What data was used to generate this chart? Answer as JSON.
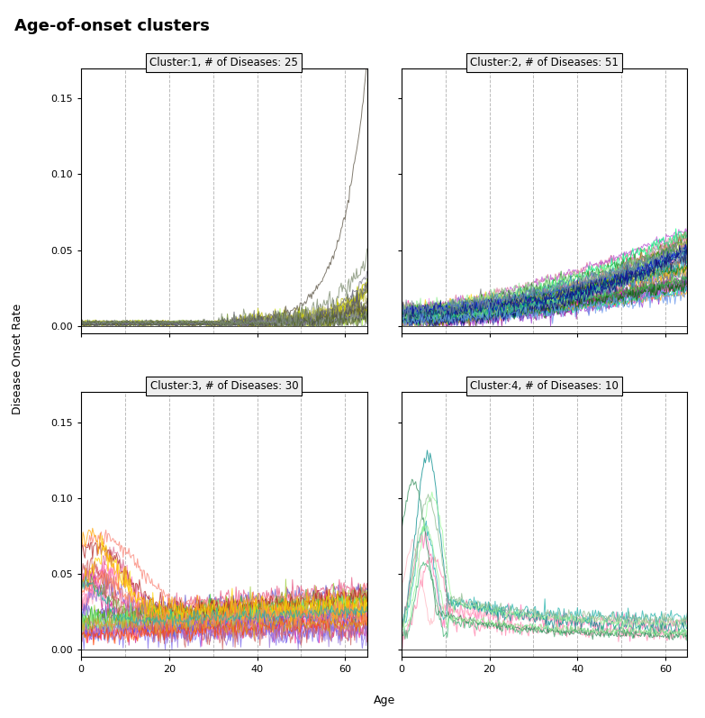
{
  "title": "Age-of-onset clusters",
  "title_fontsize": 13,
  "title_fontweight": "bold",
  "subplot_titles": [
    "Cluster:1, # of Diseases: 25",
    "Cluster:2, # of Diseases: 51",
    "Cluster:3, # of Diseases: 30",
    "Cluster:4, # of Diseases: 10"
  ],
  "xlabel": "Age",
  "ylabel": "Disease Onset Rate",
  "xlim": [
    0,
    65
  ],
  "ylim": [
    -0.005,
    0.17
  ],
  "x_ticks": [
    0,
    20,
    40,
    60
  ],
  "y_ticks": [
    0.0,
    0.05,
    0.1,
    0.15
  ],
  "vlines": [
    10,
    20,
    30,
    40,
    50,
    60
  ],
  "n_lines": [
    25,
    51,
    30,
    10
  ],
  "cluster1_colors": [
    "#808080",
    "#9acd32",
    "#adff2f",
    "#6b8e23",
    "#b8b800",
    "#808000",
    "#a0a000",
    "#909000",
    "#6b6b6b",
    "#7a7a7a",
    "#bdb76b",
    "#c8c800",
    "#d0d000",
    "#686820",
    "#606030",
    "#585040",
    "#505050",
    "#404040",
    "#505060",
    "#606070",
    "#707080",
    "#8080a0",
    "#90a090",
    "#556b2f",
    "#78886a"
  ],
  "cluster2_colors": [
    "#ff69b4",
    "#ff1493",
    "#db7093",
    "#c71585",
    "#e75480",
    "#ff6eb4",
    "#ff82ab",
    "#ee82ee",
    "#da70d6",
    "#ba55d3",
    "#9932cc",
    "#8b008b",
    "#800080",
    "#9370db",
    "#8a2be2",
    "#7b68ee",
    "#6a5acd",
    "#483d8b",
    "#ffa500",
    "#ff8c00",
    "#ffd700",
    "#daa520",
    "#b8860b",
    "#808080",
    "#696969",
    "#556b2f",
    "#6b8e23",
    "#808000",
    "#9acd32",
    "#32cd32",
    "#00fa9a",
    "#00ff7f",
    "#3cb371",
    "#2e8b57",
    "#006400",
    "#008000",
    "#228b22",
    "#90ee90",
    "#98fb98",
    "#8fbc8f",
    "#20b2aa",
    "#008b8b",
    "#008080",
    "#5f9ea0",
    "#4682b4",
    "#4169e1",
    "#0000cd",
    "#00008b",
    "#191970",
    "#6495ed",
    "#778899"
  ],
  "cluster3_colors": [
    "#ff69b4",
    "#ff6eb4",
    "#ffb6c1",
    "#ffc0cb",
    "#ff82ab",
    "#ff1493",
    "#db7093",
    "#c71585",
    "#e75480",
    "#ff8c94",
    "#9370db",
    "#8a2be2",
    "#7b68ee",
    "#6a5acd",
    "#4169e1",
    "#6b8e23",
    "#808000",
    "#9acd32",
    "#32cd32",
    "#90ee90",
    "#fa8072",
    "#f08080",
    "#cd5c5c",
    "#b22222",
    "#ff4500",
    "#ffa500",
    "#ffd700",
    "#daa520",
    "#ff7f50",
    "#20b2aa"
  ],
  "cluster4_colors": [
    "#ff6eb4",
    "#ffb6c1",
    "#ff82ab",
    "#20b2aa",
    "#008b8b",
    "#3cb371",
    "#2e8b57",
    "#90ee90",
    "#98fb98",
    "#8fbc8f"
  ],
  "background_color": "#ffffff",
  "line_alpha": 0.75,
  "line_width": 0.7,
  "seed": 42
}
